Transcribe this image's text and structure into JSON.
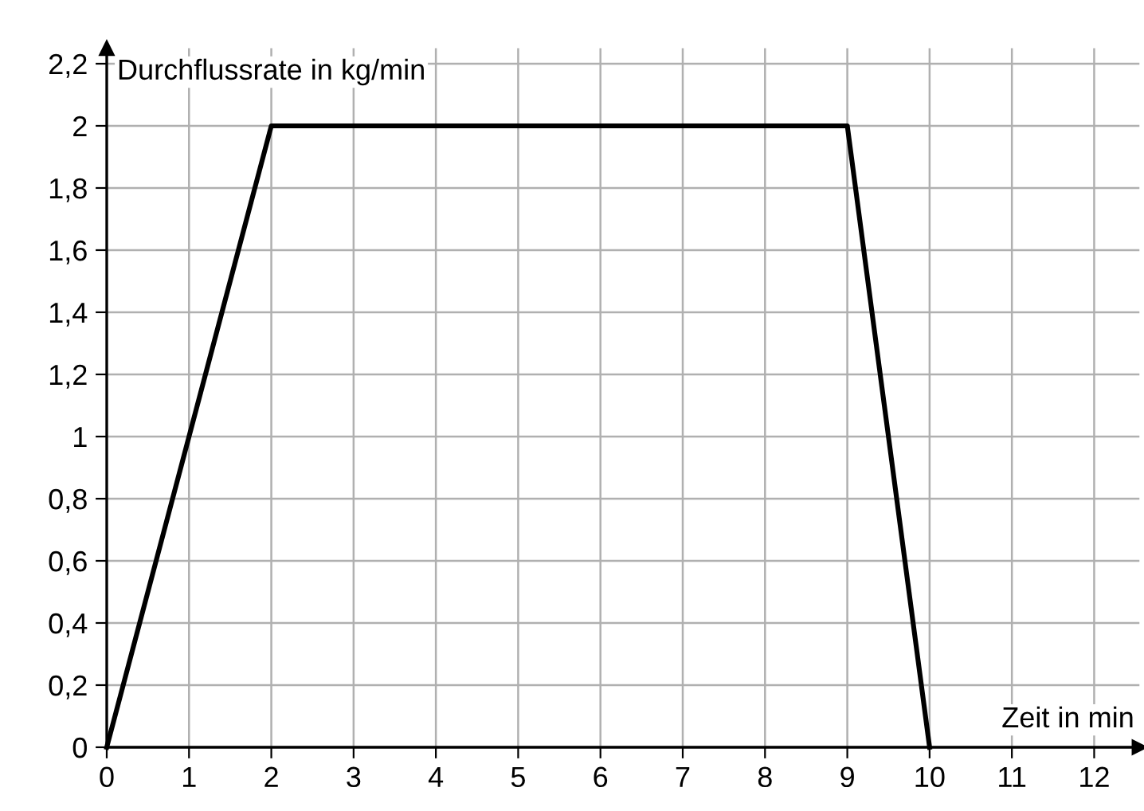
{
  "chart_data": {
    "type": "line",
    "xlabel": "Zeit in min",
    "ylabel": "Durchflussrate in kg/min",
    "x": [
      0,
      2,
      9,
      10
    ],
    "series": [
      {
        "color": "#000000",
        "values": [
          0,
          2,
          2,
          0
        ]
      }
    ],
    "xlim": [
      0,
      12.55
    ],
    "ylim": [
      0,
      2.25
    ],
    "xticks": [
      0,
      1,
      2,
      3,
      4,
      5,
      6,
      7,
      8,
      9,
      10,
      11,
      12
    ],
    "yticks": [
      0,
      {
        "value": 0.2,
        "label": "0,2"
      },
      {
        "value": 0.4,
        "label": "0,4"
      },
      {
        "value": 0.6,
        "label": "0,6"
      },
      {
        "value": 0.8,
        "label": "0,8"
      },
      1,
      {
        "value": 1.2,
        "label": "1,2"
      },
      {
        "value": 1.4,
        "label": "1,4"
      },
      {
        "value": 1.6,
        "label": "1,6"
      },
      {
        "value": 1.8,
        "label": "1,8"
      },
      2,
      {
        "value": 2.2,
        "label": "2,2"
      }
    ],
    "grid": true,
    "legend": false,
    "marker": "none",
    "line_style": "solid"
  }
}
